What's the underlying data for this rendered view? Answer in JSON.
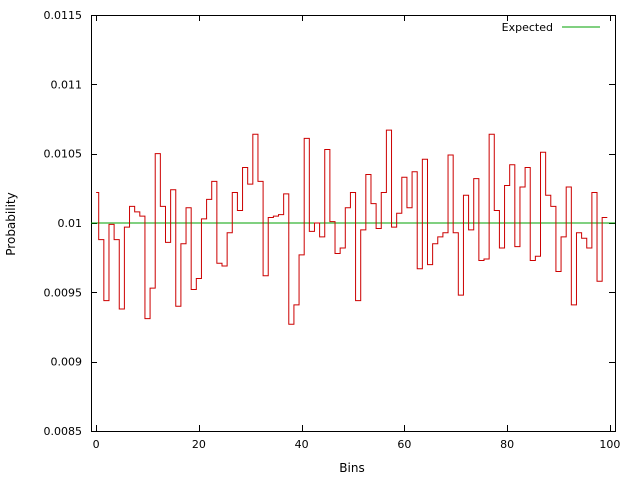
{
  "chart_data": {
    "type": "line",
    "xlabel": "Bins",
    "ylabel": "Probability",
    "xlim": [
      -1,
      101
    ],
    "ylim": [
      0.0085,
      0.0115
    ],
    "x_ticks": [
      "0",
      "20",
      "40",
      "60",
      "80",
      "100"
    ],
    "y_ticks": [
      "0.0085",
      "0.009",
      "0.0095",
      "0.01",
      "0.0105",
      "0.011",
      "0.0115"
    ],
    "grid": false,
    "legend_position": "top-right",
    "series": [
      {
        "style": "steps",
        "color": "#cc0000",
        "x": [
          0,
          1,
          2,
          3,
          4,
          5,
          6,
          7,
          8,
          9,
          10,
          11,
          12,
          13,
          14,
          15,
          16,
          17,
          18,
          19,
          20,
          21,
          22,
          23,
          24,
          25,
          26,
          27,
          28,
          29,
          30,
          31,
          32,
          33,
          34,
          35,
          36,
          37,
          38,
          39,
          40,
          41,
          42,
          43,
          44,
          45,
          46,
          47,
          48,
          49,
          50,
          51,
          52,
          53,
          54,
          55,
          56,
          57,
          58,
          59,
          60,
          61,
          62,
          63,
          64,
          65,
          66,
          67,
          68,
          69,
          70,
          71,
          72,
          73,
          74,
          75,
          76,
          77,
          78,
          79,
          80,
          81,
          82,
          83,
          84,
          85,
          86,
          87,
          88,
          89,
          90,
          91,
          92,
          93,
          94,
          95,
          96,
          97,
          98,
          99
        ],
        "y": [
          0.01022,
          0.00988,
          0.00944,
          0.00999,
          0.00988,
          0.00938,
          0.00997,
          0.01012,
          0.01008,
          0.01005,
          0.00931,
          0.00953,
          0.0105,
          0.01012,
          0.00986,
          0.01024,
          0.0094,
          0.00985,
          0.01011,
          0.00952,
          0.0096,
          0.01003,
          0.01017,
          0.0103,
          0.00971,
          0.00969,
          0.00993,
          0.01022,
          0.01009,
          0.0104,
          0.01028,
          0.01064,
          0.0103,
          0.00962,
          0.01004,
          0.01005,
          0.01006,
          0.01021,
          0.00927,
          0.00941,
          0.00977,
          0.01061,
          0.00994,
          0.01,
          0.0099,
          0.01053,
          0.01001,
          0.00978,
          0.00982,
          0.01011,
          0.01022,
          0.00944,
          0.00995,
          0.01035,
          0.01014,
          0.00996,
          0.01022,
          0.01067,
          0.00997,
          0.01007,
          0.01033,
          0.01011,
          0.01037,
          0.00967,
          0.01046,
          0.0097,
          0.00985,
          0.0099,
          0.00993,
          0.01049,
          0.00993,
          0.00948,
          0.0102,
          0.00995,
          0.01032,
          0.00973,
          0.00974,
          0.01064,
          0.01009,
          0.00982,
          0.01027,
          0.01042,
          0.00983,
          0.01026,
          0.0104,
          0.00973,
          0.00976,
          0.01051,
          0.0102,
          0.01012,
          0.00965,
          0.0099,
          0.01026,
          0.00941,
          0.00993,
          0.00989,
          0.00982,
          0.01022,
          0.00958,
          0.01004
        ]
      },
      {
        "name": "Expected",
        "color": "#00a000",
        "x": [
          -1,
          101
        ],
        "y": [
          0.01,
          0.01
        ]
      }
    ]
  }
}
